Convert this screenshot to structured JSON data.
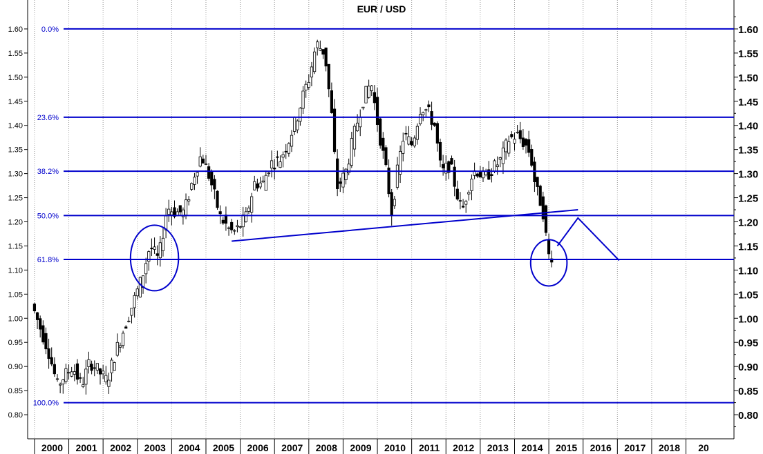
{
  "chart_data": {
    "type": "candlestick",
    "title": "EUR / USD",
    "xlabel": "",
    "ylabel": "",
    "ylim": [
      0.75,
      1.66
    ],
    "x_range": [
      1999.8,
      2020.4
    ],
    "x_ticks": [
      "2000",
      "2001",
      "2002",
      "2003",
      "2004",
      "2005",
      "2006",
      "2007",
      "2008",
      "2009",
      "2010",
      "2011",
      "2012",
      "2013",
      "2014",
      "2015",
      "2016",
      "2017",
      "2018",
      "20"
    ],
    "y_ticks_left": [
      "1.60",
      "1.55",
      "1.50",
      "1.45",
      "1.40",
      "1.35",
      "1.30",
      "1.25",
      "1.20",
      "1.15",
      "1.10",
      "1.05",
      "1.00",
      "0.95",
      "0.90",
      "0.85",
      "0.80"
    ],
    "y_ticks_right": [
      "1.60",
      "1.55",
      "1.50",
      "1.45",
      "1.40",
      "1.35",
      "1.30",
      "1.25",
      "1.20",
      "1.15",
      "1.10",
      "1.05",
      "1.00",
      "0.95",
      "0.90",
      "0.85",
      "0.80"
    ],
    "grid": "vertical dotted at each year",
    "fibonacci_levels": [
      {
        "label": "0.0%",
        "value": 1.6
      },
      {
        "label": "23.6%",
        "value": 1.417
      },
      {
        "label": "38.2%",
        "value": 1.305
      },
      {
        "label": "50.0%",
        "value": 1.213
      },
      {
        "label": "61.8%",
        "value": 1.122
      },
      {
        "label": "100.0%",
        "value": 0.825
      }
    ],
    "price_path": [
      [
        2000.0,
        1.03
      ],
      [
        2000.25,
        0.98
      ],
      [
        2000.5,
        0.93
      ],
      [
        2000.75,
        0.86
      ],
      [
        2000.95,
        0.88
      ],
      [
        2001.2,
        0.9
      ],
      [
        2001.45,
        0.86
      ],
      [
        2001.7,
        0.91
      ],
      [
        2001.95,
        0.89
      ],
      [
        2002.2,
        0.87
      ],
      [
        2002.45,
        0.93
      ],
      [
        2002.7,
        0.98
      ],
      [
        2002.95,
        1.03
      ],
      [
        2003.2,
        1.08
      ],
      [
        2003.45,
        1.15
      ],
      [
        2003.7,
        1.12
      ],
      [
        2003.95,
        1.23
      ],
      [
        2004.2,
        1.22
      ],
      [
        2004.45,
        1.22
      ],
      [
        2004.75,
        1.3
      ],
      [
        2004.95,
        1.34
      ],
      [
        2005.2,
        1.29
      ],
      [
        2005.5,
        1.21
      ],
      [
        2005.8,
        1.18
      ],
      [
        2005.95,
        1.18
      ],
      [
        2006.25,
        1.21
      ],
      [
        2006.5,
        1.28
      ],
      [
        2006.75,
        1.28
      ],
      [
        2006.95,
        1.32
      ],
      [
        2007.25,
        1.33
      ],
      [
        2007.5,
        1.37
      ],
      [
        2007.75,
        1.42
      ],
      [
        2007.95,
        1.47
      ],
      [
        2008.1,
        1.5
      ],
      [
        2008.3,
        1.57
      ],
      [
        2008.55,
        1.55
      ],
      [
        2008.75,
        1.42
      ],
      [
        2008.9,
        1.27
      ],
      [
        2009.15,
        1.3
      ],
      [
        2009.4,
        1.38
      ],
      [
        2009.65,
        1.45
      ],
      [
        2009.9,
        1.49
      ],
      [
        2010.1,
        1.4
      ],
      [
        2010.35,
        1.3
      ],
      [
        2010.5,
        1.22
      ],
      [
        2010.7,
        1.32
      ],
      [
        2010.85,
        1.38
      ],
      [
        2011.1,
        1.36
      ],
      [
        2011.35,
        1.44
      ],
      [
        2011.55,
        1.43
      ],
      [
        2011.75,
        1.4
      ],
      [
        2011.95,
        1.3
      ],
      [
        2012.2,
        1.32
      ],
      [
        2012.4,
        1.26
      ],
      [
        2012.55,
        1.22
      ],
      [
        2012.8,
        1.29
      ],
      [
        2012.95,
        1.31
      ],
      [
        2013.2,
        1.29
      ],
      [
        2013.45,
        1.31
      ],
      [
        2013.7,
        1.33
      ],
      [
        2013.9,
        1.37
      ],
      [
        2014.15,
        1.38
      ],
      [
        2014.4,
        1.36
      ],
      [
        2014.55,
        1.34
      ],
      [
        2014.7,
        1.27
      ],
      [
        2014.85,
        1.24
      ],
      [
        2014.95,
        1.21
      ],
      [
        2015.05,
        1.13
      ],
      [
        2015.15,
        1.13
      ]
    ],
    "trendline": {
      "from": [
        2005.75,
        1.16
      ],
      "to": [
        2015.85,
        1.225
      ]
    },
    "projection": [
      [
        2015.25,
        1.15
      ],
      [
        2015.85,
        1.208
      ],
      [
        2017.05,
        1.12
      ]
    ],
    "ellipses": [
      {
        "center": [
          2003.5,
          1.125
        ],
        "rx_years": 0.7,
        "ry": 0.068
      },
      {
        "center": [
          2015.0,
          1.115
        ],
        "rx_years": 0.53,
        "ry": 0.048
      }
    ]
  }
}
